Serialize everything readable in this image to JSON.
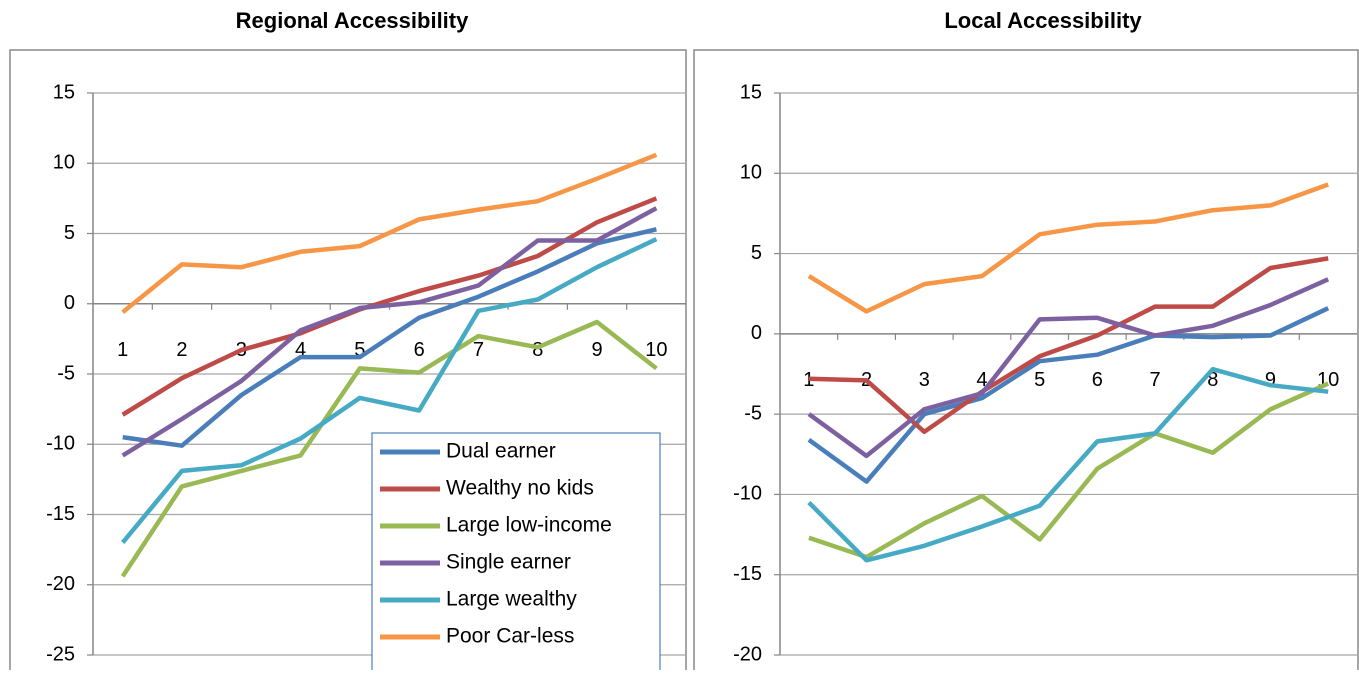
{
  "chart_data": [
    {
      "type": "line",
      "title": "Regional Accessibility",
      "categories": [
        1,
        2,
        3,
        4,
        5,
        6,
        7,
        8,
        9,
        10
      ],
      "ylim": [
        -25,
        15
      ],
      "yticks": [
        -25,
        -20,
        -15,
        -10,
        -5,
        0,
        5,
        10,
        15
      ],
      "grid": true,
      "legend": "bottom-right",
      "series": [
        {
          "name": "Dual earner",
          "color": "#4a7ebb",
          "values": [
            -9.5,
            -10.1,
            -6.5,
            -3.8,
            -3.8,
            -1.0,
            0.5,
            2.3,
            4.3,
            5.3
          ]
        },
        {
          "name": "Wealthy no kids",
          "color": "#be4b48",
          "values": [
            -7.9,
            -5.3,
            -3.3,
            -2.1,
            -0.4,
            0.9,
            2.0,
            3.4,
            5.8,
            7.5
          ]
        },
        {
          "name": "Large low-income",
          "color": "#98b954",
          "values": [
            -19.4,
            -13.0,
            -11.9,
            -10.8,
            -4.6,
            -4.9,
            -2.3,
            -3.1,
            -1.3,
            -4.6
          ]
        },
        {
          "name": "Single earner",
          "color": "#7d60a0",
          "values": [
            -10.8,
            -8.2,
            -5.5,
            -1.9,
            -0.3,
            0.1,
            1.3,
            4.5,
            4.5,
            6.8
          ]
        },
        {
          "name": "Large wealthy",
          "color": "#46aac5",
          "values": [
            -17.0,
            -11.9,
            -11.5,
            -9.6,
            -6.7,
            -7.6,
            -0.5,
            0.3,
            2.6,
            4.6
          ]
        },
        {
          "name": "Poor Car-less",
          "color": "#f79646",
          "values": [
            -0.6,
            2.8,
            2.6,
            3.7,
            4.1,
            6.0,
            6.7,
            7.3,
            8.9,
            10.6
          ]
        }
      ]
    },
    {
      "type": "line",
      "title": "Local Accessibility",
      "categories": [
        1,
        2,
        3,
        4,
        5,
        6,
        7,
        8,
        9,
        10
      ],
      "ylim": [
        -20,
        15
      ],
      "yticks": [
        -20,
        -15,
        -10,
        -5,
        0,
        5,
        10,
        15
      ],
      "grid": true,
      "series": [
        {
          "color": "#4a7ebb",
          "values": [
            -6.6,
            -9.2,
            -5.0,
            -4.0,
            -1.7,
            -1.3,
            -0.1,
            -0.2,
            -0.1,
            1.6
          ]
        },
        {
          "color": "#be4b48",
          "values": [
            -2.8,
            -2.9,
            -6.1,
            -3.6,
            -1.4,
            -0.1,
            1.7,
            1.7,
            4.1,
            4.7
          ]
        },
        {
          "color": "#98b954",
          "values": [
            -12.7,
            -13.9,
            -11.8,
            -10.1,
            -12.8,
            -8.4,
            -6.2,
            -7.4,
            -4.7,
            -3.1
          ]
        },
        {
          "color": "#7d60a0",
          "values": [
            -5.0,
            -7.6,
            -4.7,
            -3.7,
            0.9,
            1.0,
            -0.1,
            0.5,
            1.8,
            3.4
          ]
        },
        {
          "color": "#46aac5",
          "values": [
            -10.5,
            -14.1,
            -13.2,
            -12.0,
            -10.7,
            -6.7,
            -6.2,
            -2.2,
            -3.2,
            -3.6
          ]
        },
        {
          "color": "#f79646",
          "values": [
            3.6,
            1.4,
            3.1,
            3.6,
            6.2,
            6.8,
            7.0,
            7.7,
            8.0,
            9.3
          ]
        }
      ]
    }
  ]
}
